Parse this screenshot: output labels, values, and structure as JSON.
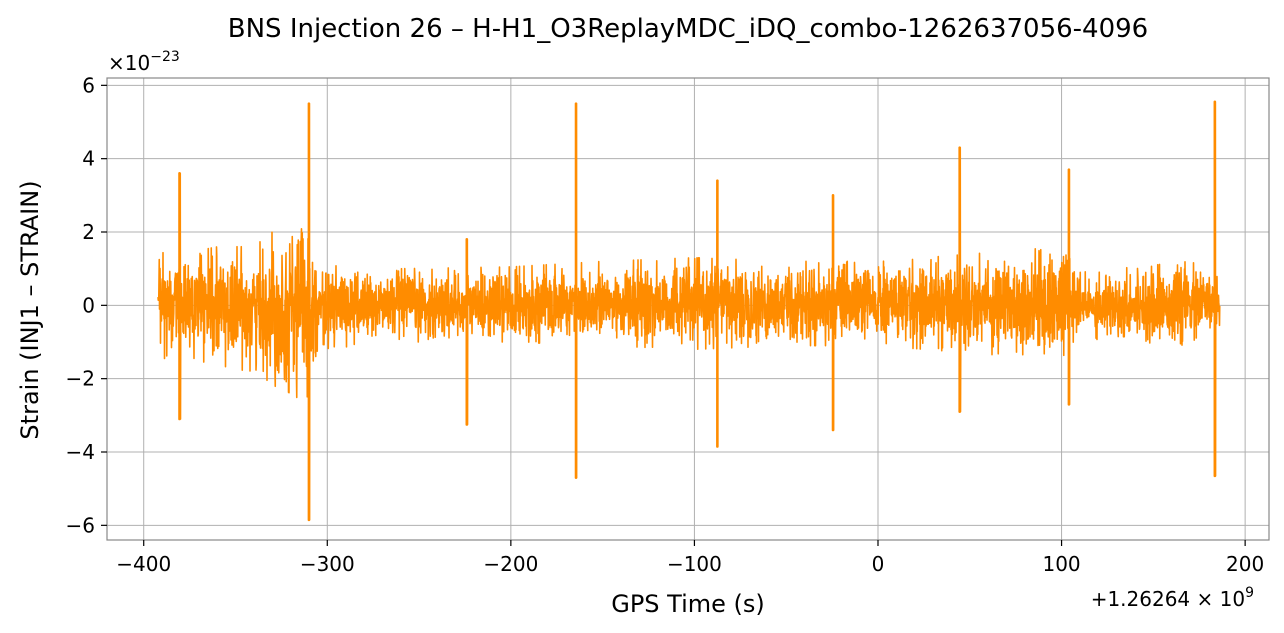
{
  "chart_data": {
    "type": "line",
    "title": "BNS Injection 26 – H-H1_O3ReplayMDC_iDQ_combo-1262637056-4096",
    "xlabel": "GPS Time (s)",
    "ylabel": "Strain (INJ1 – STRAIN)",
    "x_offset_label": "+1.26264 × 10",
    "x_offset_exponent": "9",
    "y_scale_label": "×10",
    "y_scale_exponent": "−23",
    "xlim": [
      -420,
      213
    ],
    "ylim": [
      -6.4,
      6.2
    ],
    "x_ticks": [
      -400,
      -300,
      -200,
      -100,
      0,
      100,
      200
    ],
    "x_tick_labels": [
      "−400",
      "−300",
      "−200",
      "−100",
      "0",
      "100",
      "200"
    ],
    "y_ticks": [
      -6,
      -4,
      -2,
      0,
      2,
      4,
      6
    ],
    "y_tick_labels": [
      "−6",
      "−4",
      "−2",
      "0",
      "2",
      "4",
      "6"
    ],
    "grid": true,
    "series": [
      {
        "color": "#ff8c00",
        "x_range": [
          -392,
          186
        ],
        "envelope": [
          [
            -392,
            -1.5,
            1.5
          ],
          [
            -380,
            -1.3,
            1.4
          ],
          [
            -360,
            -1.7,
            1.6
          ],
          [
            -340,
            -1.8,
            1.6
          ],
          [
            -330,
            -2.2,
            2.0
          ],
          [
            -320,
            -2.4,
            2.1
          ],
          [
            -312,
            -2.7,
            3.0
          ],
          [
            -305,
            -1.2,
            1.1
          ],
          [
            -260,
            -1.0,
            1.0
          ],
          [
            -200,
            -1.0,
            1.05
          ],
          [
            -150,
            -1.1,
            1.2
          ],
          [
            -100,
            -1.2,
            1.3
          ],
          [
            -50,
            -1.1,
            1.2
          ],
          [
            0,
            -1.1,
            1.2
          ],
          [
            50,
            -1.3,
            1.4
          ],
          [
            100,
            -1.5,
            1.6
          ],
          [
            110,
            -0.9,
            0.9
          ],
          [
            170,
            -1.1,
            1.2
          ],
          [
            186,
            -0.7,
            0.8
          ]
        ],
        "spikes": [
          {
            "x": -380.5,
            "y_max": 3.6,
            "y_min": -3.1
          },
          {
            "x": -310,
            "y_max": 5.5,
            "y_min": -5.85
          },
          {
            "x": -224,
            "y_max": 1.8,
            "y_min": -3.25
          },
          {
            "x": -164.5,
            "y_max": 5.5,
            "y_min": -4.7
          },
          {
            "x": -87.5,
            "y_max": 3.4,
            "y_min": -3.85
          },
          {
            "x": -24.5,
            "y_max": 3.0,
            "y_min": -3.4
          },
          {
            "x": 44.5,
            "y_max": 4.3,
            "y_min": -2.9
          },
          {
            "x": 104,
            "y_max": 3.7,
            "y_min": -2.7
          },
          {
            "x": 183.5,
            "y_max": 5.55,
            "y_min": -4.65
          }
        ]
      }
    ]
  }
}
